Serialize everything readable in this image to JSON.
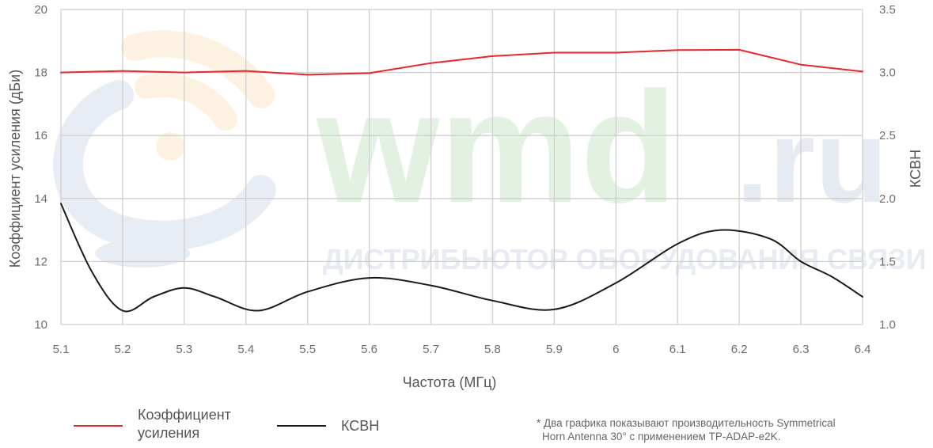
{
  "chart_data": {
    "type": "line",
    "xlabel": "Частота (МГц)",
    "ylabel_left": "Коэффициент усиления (дБи)",
    "ylabel_right": "КСВН",
    "x_ticks": [
      "5.1",
      "5.2",
      "5.3",
      "5.4",
      "5.5",
      "5.6",
      "5.7",
      "5.8",
      "5.9",
      "6",
      "6.1",
      "6.2",
      "6.3",
      "6.4"
    ],
    "xlim": [
      5.1,
      6.4
    ],
    "y_left_ticks": [
      "10",
      "12",
      "14",
      "16",
      "18",
      "20"
    ],
    "y_left_lim": [
      10,
      20
    ],
    "y_right_ticks": [
      "1.0",
      "1.5",
      "2.0",
      "2.5",
      "3.0",
      "3.5"
    ],
    "y_right_lim": [
      1.0,
      3.5
    ],
    "grid": true,
    "legend_placement": "bottom-left",
    "series": [
      {
        "name": "Коэффициент усиления",
        "name_lines": [
          "Коэффициент",
          "усиления"
        ],
        "axis": "left",
        "color": "#e8262d",
        "x": [
          5.1,
          5.2,
          5.3,
          5.4,
          5.5,
          5.6,
          5.7,
          5.8,
          5.9,
          6.0,
          6.1,
          6.2,
          6.3,
          6.4
        ],
        "values": [
          18.0,
          18.05,
          18.0,
          18.05,
          17.93,
          17.98,
          18.3,
          18.52,
          18.63,
          18.63,
          18.71,
          18.72,
          18.25,
          18.03
        ]
      },
      {
        "name": "КСВН",
        "axis": "right",
        "color": "#1a1a1a",
        "x": [
          5.1,
          5.15,
          5.2,
          5.25,
          5.3,
          5.35,
          5.42,
          5.5,
          5.6,
          5.7,
          5.8,
          5.9,
          6.0,
          6.1,
          6.17,
          6.25,
          6.3,
          6.35,
          6.4
        ],
        "values": [
          1.96,
          1.42,
          1.11,
          1.22,
          1.29,
          1.22,
          1.11,
          1.26,
          1.37,
          1.31,
          1.19,
          1.12,
          1.33,
          1.64,
          1.75,
          1.68,
          1.5,
          1.38,
          1.22
        ]
      }
    ]
  },
  "watermark": {
    "brand": "wmd",
    "brand_suffix": ".ru",
    "tagline": "ДИСТРИБЬЮТОР ОБОРУДОВАНИЯ СВЯЗИ",
    "brand_color": "#e3f1e3",
    "suffix_color": "#e6ebf2",
    "tagline_color": "#e6ebf4"
  },
  "footnote": {
    "line1": "* Два графика показывают производительность Symmetrical",
    "line2": "Horn Antenna 30° с применением TP-ADAP-e2K."
  }
}
